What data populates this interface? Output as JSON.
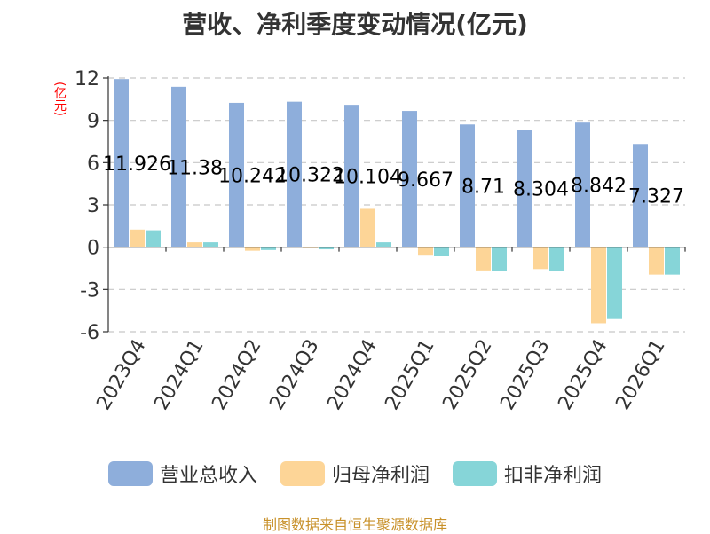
{
  "colors": {
    "revenue": "#8EAEDB",
    "parent_profit": "#FDD597",
    "deducted_profit": "#86D5D8",
    "ylabel": "#FF0000",
    "source": "#C8912A"
  },
  "chart_data": {
    "type": "bar",
    "title": "营收、净利季度变动情况(亿元)",
    "ylabel": "(亿元)",
    "xlabel": "",
    "ylim": [
      -6,
      12
    ],
    "yticks": [
      -6,
      -3,
      0,
      3,
      6,
      9,
      12
    ],
    "categories": [
      "2023Q4",
      "2024Q1",
      "2024Q2",
      "2024Q3",
      "2024Q4",
      "2025Q1",
      "2025Q2",
      "2025Q3",
      "2025Q4",
      "2026Q1"
    ],
    "series": [
      {
        "name": "营业总收入",
        "values": [
          11.926,
          11.38,
          10.242,
          10.322,
          10.104,
          9.667,
          8.71,
          8.304,
          8.842,
          7.327
        ]
      },
      {
        "name": "归母净利润",
        "values": [
          1.25,
          0.35,
          -0.25,
          -0.05,
          2.72,
          -0.6,
          -1.65,
          -1.55,
          -5.4,
          -1.95
        ]
      },
      {
        "name": "扣非净利润",
        "values": [
          1.2,
          0.35,
          -0.2,
          -0.15,
          0.35,
          -0.65,
          -1.7,
          -1.7,
          -5.1,
          -1.95
        ]
      }
    ],
    "data_labels": [
      "11.926",
      "11.38",
      "10.242",
      "10.322",
      "10.104",
      "9.667",
      "8.71",
      "8.304",
      "8.842",
      "7.327"
    ],
    "legend": [
      "营业总收入",
      "归母净利润",
      "扣非净利润"
    ],
    "grid": true,
    "legend_position": "bottom"
  },
  "source": "制图数据来自恒生聚源数据库"
}
